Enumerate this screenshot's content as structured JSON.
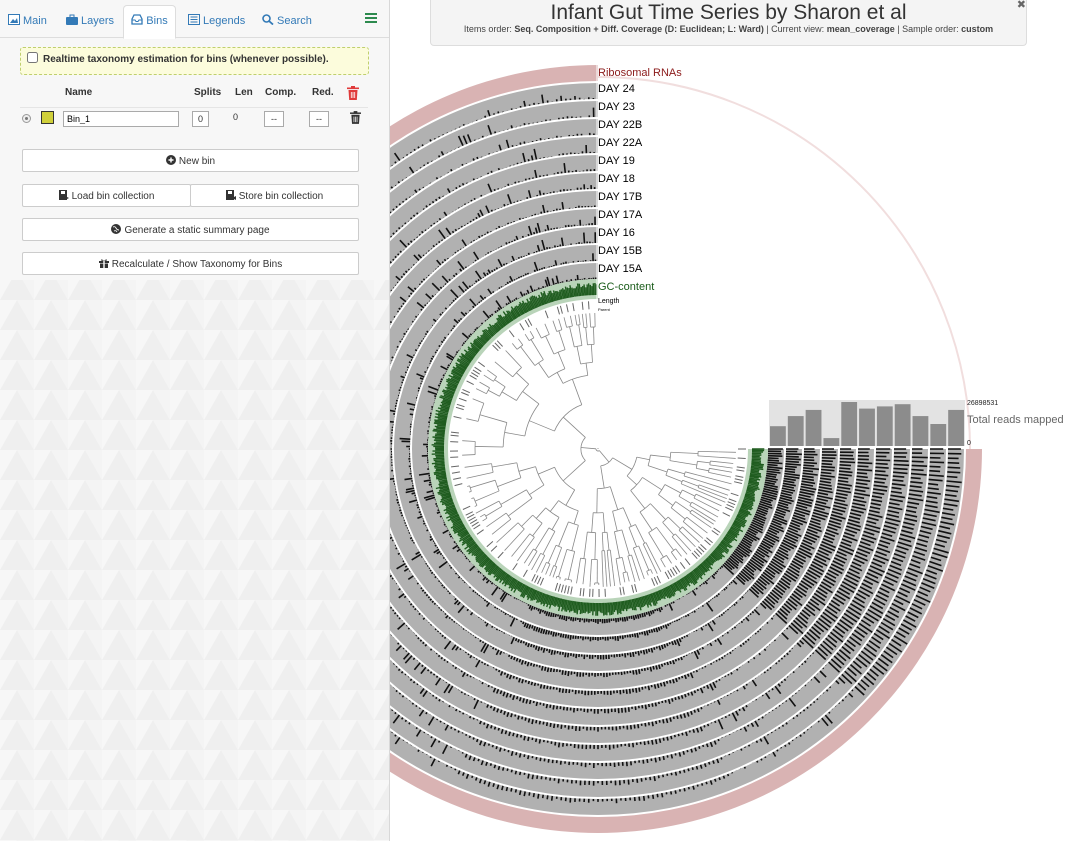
{
  "tabs": [
    {
      "label": "Main"
    },
    {
      "label": "Layers"
    },
    {
      "label": "Bins"
    },
    {
      "label": "Legends"
    },
    {
      "label": "Search"
    }
  ],
  "bins_panel": {
    "realtime_label": "Realtime taxonomy estimation for bins (whenever possible).",
    "columns": {
      "name": "Name",
      "splits": "Splits",
      "len": "Len",
      "comp": "Comp.",
      "red": "Red."
    },
    "bin": {
      "name": "Bin_1",
      "splits": "0",
      "len": "0",
      "comp": "--",
      "red": "--",
      "color": "#cfcf3a"
    },
    "buttons": {
      "new_bin": "New bin",
      "load_collection": "Load bin collection",
      "store_collection": "Store bin collection",
      "summary": "Generate a static summary page",
      "taxonomy": "Recalculate / Show Taxonomy for Bins"
    }
  },
  "header": {
    "title": "Infant Gut Time Series by Sharon et al",
    "items_order_label": "Items order: ",
    "items_order": "Seq. Composition + Diff. Coverage (D: Euclidean; L: Ward)",
    "current_view_label": " | Current view: ",
    "current_view": "mean_coverage",
    "sample_order_label": " | Sample order: ",
    "sample_order": "custom"
  },
  "layers": [
    {
      "label": "Ribosomal RNAs",
      "color": "#8b1a1a"
    },
    {
      "label": "DAY 24",
      "color": "#000000"
    },
    {
      "label": "DAY 23",
      "color": "#000000"
    },
    {
      "label": "DAY 22B",
      "color": "#000000"
    },
    {
      "label": "DAY 22A",
      "color": "#000000"
    },
    {
      "label": "DAY 19",
      "color": "#000000"
    },
    {
      "label": "DAY 18",
      "color": "#000000"
    },
    {
      "label": "DAY 17B",
      "color": "#000000"
    },
    {
      "label": "DAY 17A",
      "color": "#000000"
    },
    {
      "label": "DAY 16",
      "color": "#000000"
    },
    {
      "label": "DAY 15B",
      "color": "#000000"
    },
    {
      "label": "DAY 15A",
      "color": "#000000"
    },
    {
      "label": "GC-content",
      "color": "#1a5c1a"
    },
    {
      "label": "Length",
      "color": "#000000"
    },
    {
      "label": "Parent",
      "color": "#000000"
    }
  ],
  "reads_chart": {
    "label": "Total reads mapped",
    "max_label": "26898531",
    "min_label": "0",
    "values": [
      0.45,
      0.68,
      0.82,
      0.18,
      1.0,
      0.85,
      0.9,
      0.95,
      0.68,
      0.5,
      0.82
    ]
  }
}
